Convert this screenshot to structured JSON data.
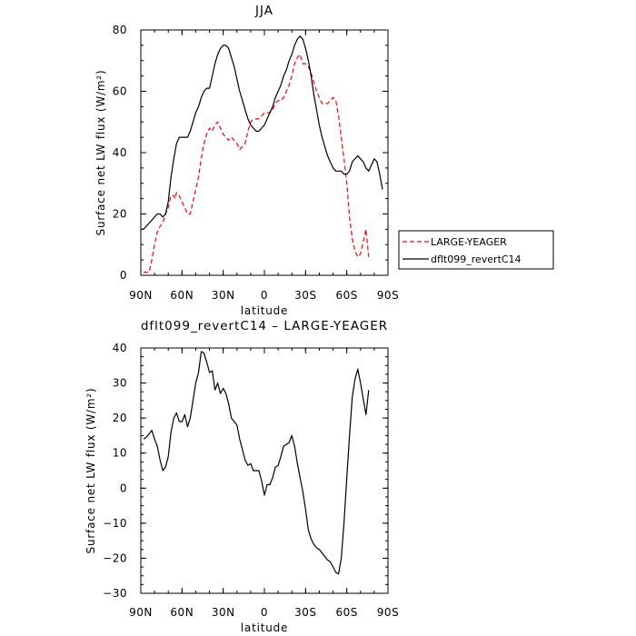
{
  "chart_data": [
    {
      "type": "line",
      "title": "JJA",
      "xlabel": "latitude",
      "ylabel": "Surface net LW flux (W/m²)",
      "xlim": [
        90,
        -90
      ],
      "ylim": [
        0,
        80
      ],
      "x_ticks": [
        90,
        60,
        30,
        0,
        -30,
        -60,
        -90
      ],
      "x_tick_labels": [
        "90N",
        "60N",
        "30N",
        "0",
        "30S",
        "60S",
        "90S"
      ],
      "y_ticks": [
        0,
        20,
        40,
        60,
        80
      ],
      "y_tick_labels": [
        "0",
        "20",
        "40",
        "60",
        "80"
      ],
      "legend_position": "right",
      "series": [
        {
          "name": "LARGE-YEAGER",
          "color": "#ff0000",
          "dash": "dashed",
          "points": [
            [
              88,
              1
            ],
            [
              86,
              1
            ],
            [
              84,
              1
            ],
            [
              82,
              5
            ],
            [
              80,
              10
            ],
            [
              78,
              14
            ],
            [
              76,
              16
            ],
            [
              74,
              17
            ],
            [
              72,
              20
            ],
            [
              70,
              22
            ],
            [
              68,
              26
            ],
            [
              66,
              26
            ],
            [
              65,
              25
            ],
            [
              64,
              27
            ],
            [
              62,
              26
            ],
            [
              60,
              24
            ],
            [
              58,
              22
            ],
            [
              56,
              20
            ],
            [
              54,
              20
            ],
            [
              52,
              24
            ],
            [
              50,
              28
            ],
            [
              48,
              32
            ],
            [
              46,
              38
            ],
            [
              44,
              43
            ],
            [
              42,
              46
            ],
            [
              40,
              48
            ],
            [
              38,
              47
            ],
            [
              36,
              49
            ],
            [
              34,
              50
            ],
            [
              32,
              48
            ],
            [
              30,
              46
            ],
            [
              28,
              45
            ],
            [
              26,
              44
            ],
            [
              24,
              45
            ],
            [
              22,
              44
            ],
            [
              20,
              43
            ],
            [
              18,
              41
            ],
            [
              16,
              42
            ],
            [
              14,
              43
            ],
            [
              12,
              47
            ],
            [
              10,
              50
            ],
            [
              8,
              51
            ],
            [
              6,
              51
            ],
            [
              4,
              51
            ],
            [
              2,
              52
            ],
            [
              0,
              53
            ],
            [
              -2,
              53
            ],
            [
              -4,
              53
            ],
            [
              -6,
              54
            ],
            [
              -8,
              56
            ],
            [
              -10,
              57
            ],
            [
              -12,
              57
            ],
            [
              -14,
              58
            ],
            [
              -16,
              60
            ],
            [
              -18,
              62
            ],
            [
              -20,
              65
            ],
            [
              -22,
              69
            ],
            [
              -24,
              71
            ],
            [
              -26,
              72
            ],
            [
              -28,
              69
            ],
            [
              -30,
              69
            ],
            [
              -32,
              68
            ],
            [
              -34,
              66
            ],
            [
              -36,
              63
            ],
            [
              -38,
              60
            ],
            [
              -40,
              58
            ],
            [
              -42,
              56
            ],
            [
              -44,
              56
            ],
            [
              -46,
              56
            ],
            [
              -48,
              57
            ],
            [
              -50,
              58
            ],
            [
              -52,
              57
            ],
            [
              -54,
              52
            ],
            [
              -56,
              45
            ],
            [
              -58,
              38
            ],
            [
              -60,
              30
            ],
            [
              -62,
              19
            ],
            [
              -64,
              12
            ],
            [
              -66,
              8
            ],
            [
              -68,
              6
            ],
            [
              -70,
              7
            ],
            [
              -72,
              11
            ],
            [
              -74,
              15
            ],
            [
              -76,
              6
            ]
          ]
        },
        {
          "name": "dflt099_revertC14",
          "color": "#000000",
          "dash": "solid",
          "points": [
            [
              90,
              15
            ],
            [
              88,
              15
            ],
            [
              86,
              16
            ],
            [
              84,
              17
            ],
            [
              82,
              18
            ],
            [
              80,
              19
            ],
            [
              78,
              20
            ],
            [
              76,
              20
            ],
            [
              74,
              19
            ],
            [
              72,
              20
            ],
            [
              70,
              24
            ],
            [
              68,
              32
            ],
            [
              66,
              38
            ],
            [
              64,
              43
            ],
            [
              62,
              45
            ],
            [
              60,
              45
            ],
            [
              58,
              45
            ],
            [
              56,
              45
            ],
            [
              54,
              47
            ],
            [
              52,
              50
            ],
            [
              50,
              53
            ],
            [
              48,
              55
            ],
            [
              46,
              58
            ],
            [
              44,
              60
            ],
            [
              42,
              61
            ],
            [
              40,
              61
            ],
            [
              38,
              65
            ],
            [
              36,
              69
            ],
            [
              34,
              72
            ],
            [
              32,
              74
            ],
            [
              30,
              75
            ],
            [
              28,
              75
            ],
            [
              26,
              74
            ],
            [
              24,
              71
            ],
            [
              22,
              68
            ],
            [
              20,
              64
            ],
            [
              18,
              60
            ],
            [
              16,
              57
            ],
            [
              14,
              54
            ],
            [
              12,
              51
            ],
            [
              10,
              49
            ],
            [
              8,
              48
            ],
            [
              6,
              47
            ],
            [
              4,
              47
            ],
            [
              2,
              48
            ],
            [
              0,
              49
            ],
            [
              -2,
              51
            ],
            [
              -4,
              53
            ],
            [
              -6,
              55
            ],
            [
              -8,
              58
            ],
            [
              -10,
              60
            ],
            [
              -12,
              62
            ],
            [
              -14,
              65
            ],
            [
              -16,
              67
            ],
            [
              -18,
              70
            ],
            [
              -20,
              72
            ],
            [
              -22,
              75
            ],
            [
              -24,
              77
            ],
            [
              -26,
              78
            ],
            [
              -28,
              77
            ],
            [
              -30,
              74
            ],
            [
              -32,
              70
            ],
            [
              -34,
              65
            ],
            [
              -36,
              59
            ],
            [
              -38,
              54
            ],
            [
              -40,
              49
            ],
            [
              -42,
              45
            ],
            [
              -44,
              42
            ],
            [
              -46,
              39
            ],
            [
              -48,
              37
            ],
            [
              -50,
              35
            ],
            [
              -52,
              34
            ],
            [
              -54,
              34
            ],
            [
              -56,
              34
            ],
            [
              -58,
              33
            ],
            [
              -60,
              33
            ],
            [
              -62,
              34
            ],
            [
              -64,
              37
            ],
            [
              -66,
              38
            ],
            [
              -68,
              39
            ],
            [
              -70,
              38
            ],
            [
              -72,
              37
            ],
            [
              -74,
              35
            ],
            [
              -76,
              34
            ],
            [
              -78,
              36
            ],
            [
              -80,
              38
            ],
            [
              -82,
              37
            ],
            [
              -84,
              33
            ],
            [
              -86,
              28
            ]
          ]
        }
      ]
    },
    {
      "type": "line",
      "title": "dflt099_revertC14 – LARGE-YEAGER",
      "xlabel": "latitude",
      "ylabel": "Surface net LW flux (W/m²)",
      "xlim": [
        90,
        -90
      ],
      "ylim": [
        -30,
        40
      ],
      "x_ticks": [
        90,
        60,
        30,
        0,
        -30,
        -60,
        -90
      ],
      "x_tick_labels": [
        "90N",
        "60N",
        "30N",
        "0",
        "30S",
        "60S",
        "90S"
      ],
      "y_ticks": [
        -30,
        -20,
        -10,
        0,
        10,
        20,
        30,
        40
      ],
      "y_tick_labels": [
        "−30",
        "−20",
        "−10",
        "0",
        "10",
        "20",
        "30",
        "40"
      ],
      "series": [
        {
          "color": "#000000",
          "dash": "solid",
          "points": [
            [
              88,
              14
            ],
            [
              86,
              14.5
            ],
            [
              84,
              15.5
            ],
            [
              82,
              16.5
            ],
            [
              80,
              14
            ],
            [
              78,
              12
            ],
            [
              76,
              8
            ],
            [
              74,
              5
            ],
            [
              72,
              6
            ],
            [
              70,
              9
            ],
            [
              68,
              16
            ],
            [
              66,
              20
            ],
            [
              64,
              21.5
            ],
            [
              62,
              19
            ],
            [
              60,
              19
            ],
            [
              58,
              21
            ],
            [
              56,
              17.5
            ],
            [
              54,
              20
            ],
            [
              52,
              25
            ],
            [
              50,
              30
            ],
            [
              48,
              33
            ],
            [
              46,
              39
            ],
            [
              44,
              38.5
            ],
            [
              42,
              36
            ],
            [
              40,
              33
            ],
            [
              38,
              33.5
            ],
            [
              36,
              28
            ],
            [
              34,
              30
            ],
            [
              32,
              27
            ],
            [
              30,
              28.5
            ],
            [
              28,
              27
            ],
            [
              26,
              24
            ],
            [
              24,
              20
            ],
            [
              22,
              19
            ],
            [
              20,
              18
            ],
            [
              18,
              14
            ],
            [
              16,
              11
            ],
            [
              14,
              8
            ],
            [
              12,
              6.5
            ],
            [
              10,
              7
            ],
            [
              8,
              5
            ],
            [
              6,
              5
            ],
            [
              4,
              5
            ],
            [
              2,
              2
            ],
            [
              0,
              -2
            ],
            [
              -2,
              1
            ],
            [
              -4,
              1
            ],
            [
              -6,
              3
            ],
            [
              -8,
              6
            ],
            [
              -10,
              6.5
            ],
            [
              -12,
              9
            ],
            [
              -14,
              12
            ],
            [
              -16,
              12.5
            ],
            [
              -18,
              13
            ],
            [
              -20,
              15
            ],
            [
              -22,
              12
            ],
            [
              -24,
              7
            ],
            [
              -26,
              3
            ],
            [
              -28,
              -1
            ],
            [
              -30,
              -6
            ],
            [
              -32,
              -12
            ],
            [
              -34,
              -14.5
            ],
            [
              -36,
              -16
            ],
            [
              -38,
              -17
            ],
            [
              -40,
              -17.5
            ],
            [
              -42,
              -18.5
            ],
            [
              -44,
              -19.5
            ],
            [
              -46,
              -20.5
            ],
            [
              -48,
              -21
            ],
            [
              -50,
              -22.5
            ],
            [
              -52,
              -24
            ],
            [
              -54,
              -24.5
            ],
            [
              -56,
              -20
            ],
            [
              -58,
              -10
            ],
            [
              -60,
              3
            ],
            [
              -62,
              15
            ],
            [
              -64,
              26
            ],
            [
              -66,
              31
            ],
            [
              -68,
              34
            ],
            [
              -70,
              30
            ],
            [
              -72,
              25.5
            ],
            [
              -74,
              21
            ],
            [
              -76,
              28
            ]
          ]
        }
      ]
    }
  ]
}
